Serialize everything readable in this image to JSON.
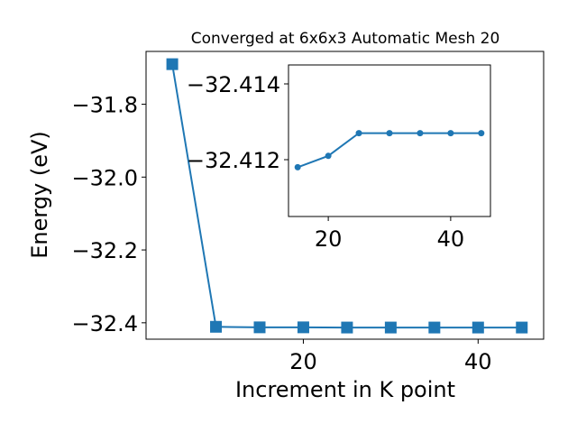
{
  "chart_data": [
    {
      "type": "line",
      "title": "Converged at 6x6x3 Automatic Mesh 20",
      "xlabel": "Increment in K point",
      "ylabel": "Energy (eV)",
      "xlim": [
        2.0,
        47.5
      ],
      "ylim": [
        -32.445,
        -31.655
      ],
      "xticks": [
        20,
        40
      ],
      "xtick_labels": [
        "20",
        "40"
      ],
      "yticks": [
        -31.8,
        -32.0,
        -32.2,
        -32.4
      ],
      "ytick_labels": [
        "−31.8",
        "−32.0",
        "−32.2",
        "−32.4"
      ],
      "marker": "square",
      "color": "#1f77b4",
      "grid": false,
      "series": [
        {
          "x": [
            5,
            10,
            15,
            20,
            25,
            30,
            35,
            40,
            45
          ],
          "y": [
            -31.69,
            -32.411,
            -32.4125,
            -32.4125,
            -32.413,
            -32.413,
            -32.413,
            -32.413,
            -32.413
          ]
        }
      ]
    },
    {
      "type": "line",
      "title": "",
      "inset": true,
      "xlim": [
        13.5,
        46.5
      ],
      "ylim": [
        -32.4105,
        -32.4145
      ],
      "xticks": [
        20,
        40
      ],
      "xtick_labels": [
        "20",
        "40"
      ],
      "yticks": [
        -32.414,
        -32.412
      ],
      "ytick_labels": [
        "−32.414",
        "−32.412"
      ],
      "marker": "circle",
      "color": "#1f77b4",
      "grid": false,
      "series": [
        {
          "x": [
            15,
            20,
            25,
            30,
            35,
            40,
            45
          ],
          "y": [
            -32.4118,
            -32.4121,
            -32.4127,
            -32.4127,
            -32.4127,
            -32.4127,
            -32.4127
          ]
        }
      ]
    }
  ]
}
